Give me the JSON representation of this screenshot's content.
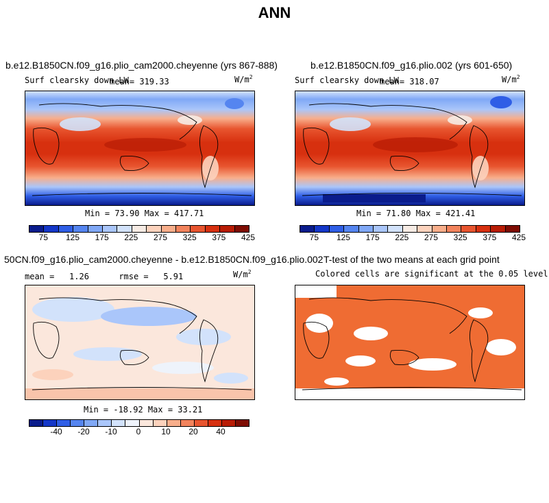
{
  "main_title": "ANN",
  "panels": {
    "top_left": {
      "title": "b.e12.B1850CN.f09_g16.plio_cam2000.cheyenne (yrs 867-888)",
      "variable": "Surf clearsky down LW",
      "mean_label": "mean=",
      "mean_value": "319.33",
      "units": "W/m",
      "units_sup": "2",
      "minmax": "Min =  73.90 Max = 417.71"
    },
    "top_right": {
      "title": "b.e12.B1850CN.f09_g16.plio.002 (yrs 601-650)",
      "variable": "Surf clearsky down LW",
      "mean_label": "mean=",
      "mean_value": "318.07",
      "units": "W/m",
      "units_sup": "2",
      "minmax": "Min =  71.80 Max = 421.41"
    },
    "bottom_left": {
      "title": "50CN.f09_g16.plio_cam2000.cheyenne - b.e12.B1850CN.f09_g16.plio.002",
      "mean_label": "mean =",
      "mean_value": "1.26",
      "rmse_label": "rmse =",
      "rmse_value": "5.91",
      "units": "W/m",
      "units_sup": "2",
      "minmax": "Min = -18.92 Max =  33.21"
    },
    "bottom_right": {
      "title": "T-test of the two means at each grid point",
      "subtitle": "Colored cells are significant at the 0.05 level"
    }
  },
  "colorbars": {
    "abs_ticks": [
      "75",
      "125",
      "175",
      "225",
      "275",
      "325",
      "375",
      "425"
    ],
    "diff_ticks": [
      "-40",
      "-20",
      "-10",
      "0",
      "10",
      "20",
      "40"
    ],
    "abs_colors": [
      "#0a1c8c",
      "#1437c8",
      "#2f5ee6",
      "#5585f0",
      "#80a8f6",
      "#aac6fa",
      "#d2e2fb",
      "#f6ebe4",
      "#fcd2bc",
      "#f8ae8b",
      "#f2835c",
      "#e8552f",
      "#d7300f",
      "#b81c05",
      "#7e0c02"
    ],
    "diff_colors": [
      "#0a1c8c",
      "#1437c8",
      "#2f5ee6",
      "#5585f0",
      "#80a8f6",
      "#aac6fa",
      "#d2e2fb",
      "#eef3fb",
      "#fbe7dc",
      "#fcd2bc",
      "#f8ae8b",
      "#f2835c",
      "#e8552f",
      "#d7300f",
      "#b81c05",
      "#7e0c02"
    ]
  },
  "ttest_color": "#ef6c33"
}
